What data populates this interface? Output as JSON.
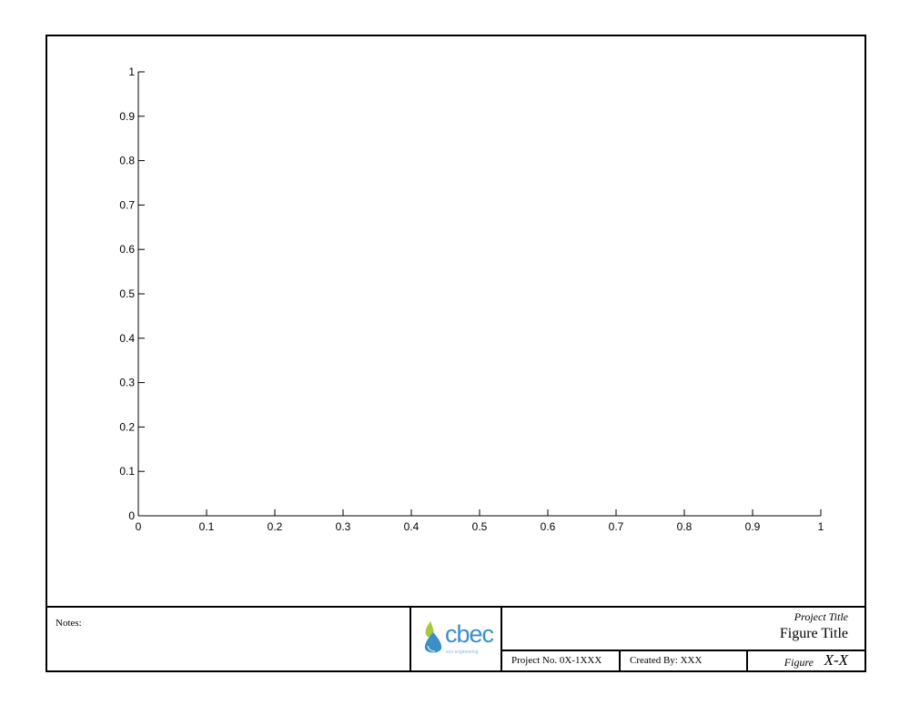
{
  "chart_data": {
    "type": "line",
    "title": "",
    "xlabel": "",
    "ylabel": "",
    "xlim": [
      0,
      1
    ],
    "ylim": [
      0,
      1
    ],
    "x_ticks": [
      "0",
      "0.1",
      "0.2",
      "0.3",
      "0.4",
      "0.5",
      "0.6",
      "0.7",
      "0.8",
      "0.9",
      "1"
    ],
    "y_ticks": [
      "0",
      "0.1",
      "0.2",
      "0.3",
      "0.4",
      "0.5",
      "0.6",
      "0.7",
      "0.8",
      "0.9",
      "1"
    ],
    "grid": false,
    "series": []
  },
  "title_block": {
    "notes_label": "Notes:",
    "logo_text": "cbec",
    "logo_subtext": "eco engineering",
    "project_title": "Project Title",
    "figure_title": "Figure Title",
    "project_no": "Project No. 0X-1XXX",
    "created_by": "Created By: XXX",
    "figure_word": "Figure",
    "figure_number": "X-X"
  },
  "colors": {
    "axis": "#000000",
    "logo_blue": "#3a8fc6",
    "logo_green": "#a8c93a"
  }
}
